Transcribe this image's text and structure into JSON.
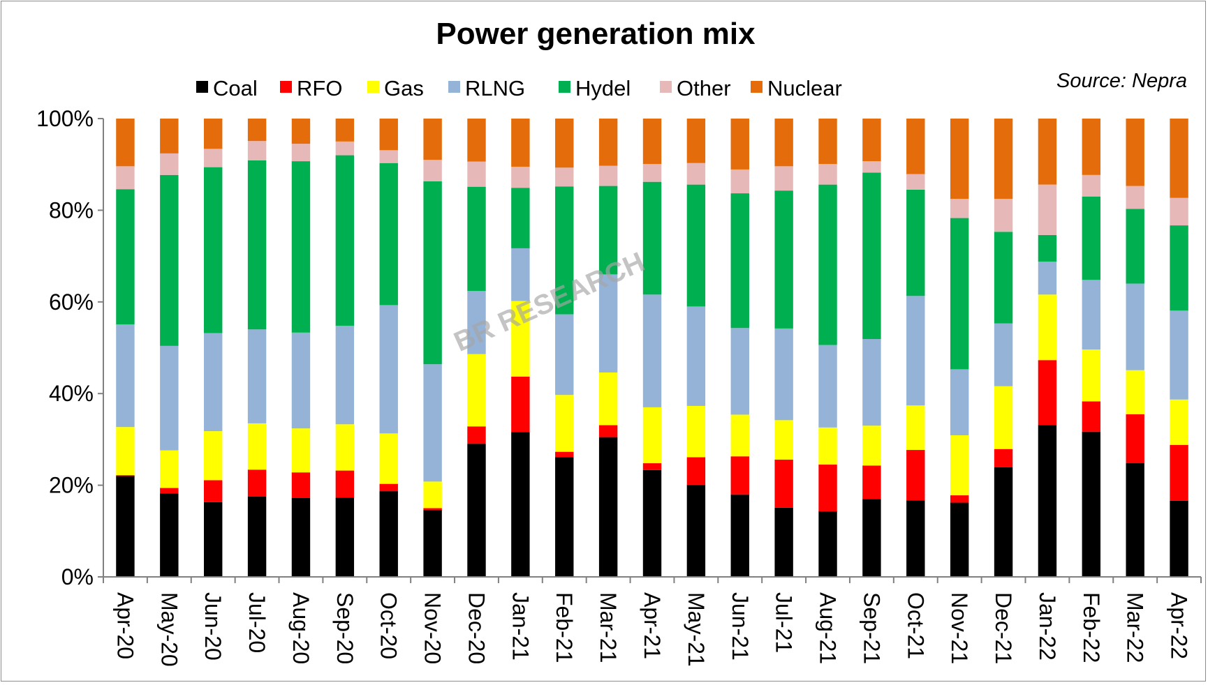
{
  "chart_data": {
    "type": "bar",
    "stacked": true,
    "title": "Power generation mix",
    "source_note": "Source: Nepra",
    "watermark": "BR RESEARCH",
    "xlabel": "",
    "ylabel": "",
    "ylim": [
      0,
      100
    ],
    "y_ticks": [
      "0%",
      "20%",
      "40%",
      "60%",
      "80%",
      "100%"
    ],
    "legend_position": "top",
    "grid": false,
    "categories": [
      "Apr-20",
      "May-20",
      "Jun-20",
      "Jul-20",
      "Aug-20",
      "Sep-20",
      "Oct-20",
      "Nov-20",
      "Dec-20",
      "Jan-21",
      "Feb-21",
      "Mar-21",
      "Apr-21",
      "May-21",
      "Jun-21",
      "Jul-21",
      "Aug-21",
      "Sep-21",
      "Oct-21",
      "Nov-21",
      "Dec-21",
      "Jan-22",
      "Feb-22",
      "Mar-22",
      "Apr-22"
    ],
    "series": [
      {
        "name": "Coal",
        "color": "#000000",
        "values": [
          22.0,
          18.2,
          16.3,
          17.5,
          17.2,
          17.3,
          18.7,
          14.6,
          29.1,
          31.6,
          26.1,
          30.5,
          23.3,
          20.1,
          18.0,
          15.1,
          14.3,
          17.0,
          16.7,
          16.2,
          23.9,
          33.1,
          31.7,
          24.8,
          16.6
        ]
      },
      {
        "name": "RFO",
        "color": "#ff0000",
        "values": [
          0.2,
          1.2,
          4.8,
          5.9,
          5.6,
          5.9,
          1.6,
          0.4,
          3.8,
          12.1,
          1.2,
          2.6,
          1.5,
          6.0,
          8.3,
          10.5,
          10.2,
          7.3,
          11.0,
          1.6,
          4.0,
          14.2,
          6.6,
          10.7,
          12.2
        ]
      },
      {
        "name": "Gas",
        "color": "#ffff00",
        "values": [
          10.5,
          8.2,
          10.7,
          10.1,
          9.6,
          10.1,
          11.0,
          5.8,
          15.8,
          16.5,
          12.4,
          11.5,
          12.2,
          11.2,
          9.1,
          8.6,
          8.1,
          8.7,
          9.7,
          13.1,
          13.7,
          14.3,
          11.3,
          9.6,
          9.9
        ]
      },
      {
        "name": "RLNG",
        "color": "#95b3d7",
        "values": [
          22.4,
          22.8,
          21.4,
          20.5,
          20.9,
          21.5,
          28.0,
          25.6,
          13.8,
          11.5,
          17.6,
          21.4,
          24.6,
          21.7,
          18.9,
          20.0,
          18.0,
          18.9,
          23.9,
          14.4,
          13.7,
          7.2,
          15.2,
          18.9,
          19.4
        ]
      },
      {
        "name": "Hydel",
        "color": "#00b050",
        "values": [
          29.5,
          37.3,
          36.2,
          36.9,
          37.4,
          37.2,
          31.0,
          39.9,
          22.8,
          13.2,
          27.9,
          19.3,
          24.6,
          26.6,
          29.4,
          30.1,
          35.0,
          36.3,
          23.2,
          33.0,
          20.0,
          5.8,
          18.2,
          16.3,
          18.6
        ]
      },
      {
        "name": "Other",
        "color": "#e6b9b8",
        "values": [
          5.0,
          4.7,
          4.0,
          4.2,
          3.8,
          3.0,
          2.8,
          4.7,
          5.5,
          4.6,
          4.1,
          4.4,
          3.9,
          4.7,
          5.2,
          5.3,
          4.5,
          2.5,
          3.4,
          4.2,
          7.2,
          11.0,
          4.7,
          5.0,
          6.0
        ]
      },
      {
        "name": "Nuclear",
        "color": "#e46c0a",
        "values": [
          10.4,
          7.6,
          6.6,
          4.9,
          5.5,
          5.0,
          6.9,
          9.0,
          9.4,
          10.5,
          10.7,
          10.3,
          9.9,
          9.7,
          11.1,
          10.4,
          9.9,
          9.3,
          12.1,
          17.5,
          17.5,
          14.4,
          12.3,
          14.7,
          17.3
        ]
      }
    ]
  }
}
